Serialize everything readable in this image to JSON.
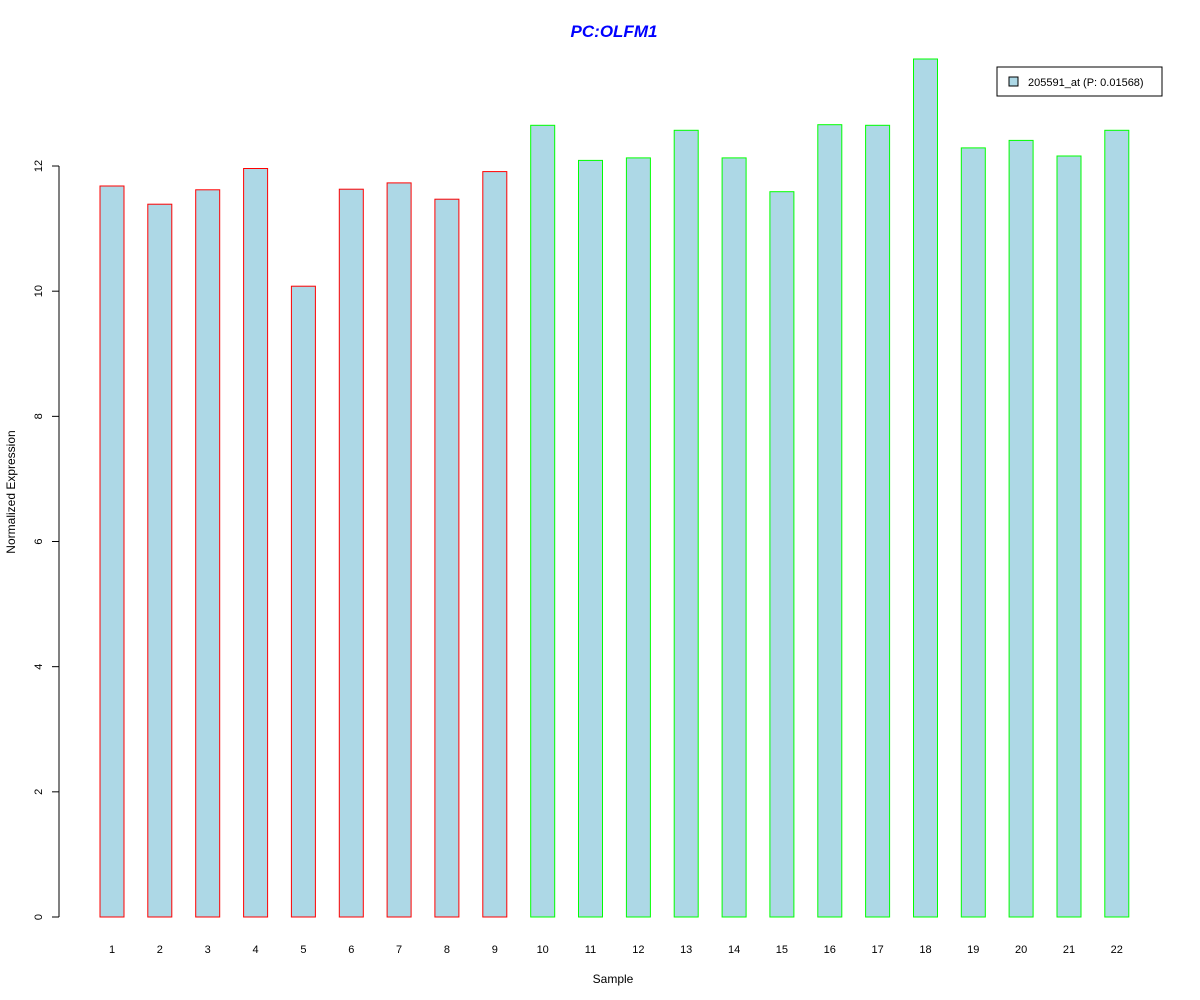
{
  "chart_data": {
    "type": "bar",
    "title": "PC:OLFM1",
    "xlabel": "Sample",
    "ylabel": "Normalized Expression",
    "categories": [
      "1",
      "2",
      "3",
      "4",
      "5",
      "6",
      "7",
      "8",
      "9",
      "10",
      "11",
      "12",
      "13",
      "14",
      "15",
      "16",
      "17",
      "18",
      "19",
      "20",
      "21",
      "22"
    ],
    "series": [
      {
        "name": "205591_at (P: 0.01568)",
        "values": [
          11.68,
          11.39,
          11.62,
          11.96,
          10.08,
          11.63,
          11.73,
          11.47,
          11.91,
          12.65,
          12.09,
          12.13,
          12.57,
          12.13,
          11.59,
          12.66,
          12.65,
          13.71,
          12.29,
          12.41,
          12.16,
          12.57
        ]
      }
    ],
    "groups": [
      {
        "samples": [
          "1",
          "2",
          "3",
          "4",
          "5",
          "6",
          "7",
          "8",
          "9"
        ],
        "border_color": "#ff0000"
      },
      {
        "samples": [
          "10",
          "11",
          "12",
          "13",
          "14",
          "15",
          "16",
          "17",
          "18",
          "19",
          "20",
          "21",
          "22"
        ],
        "border_color": "#00ff00"
      }
    ],
    "ylim": [
      0,
      13.71
    ],
    "yticks": [
      0,
      2,
      4,
      6,
      8,
      10,
      12
    ],
    "legend_position": "top-right",
    "grid": false,
    "colors": {
      "bar_fill": "#add8e6",
      "title": "#0000ff"
    }
  }
}
